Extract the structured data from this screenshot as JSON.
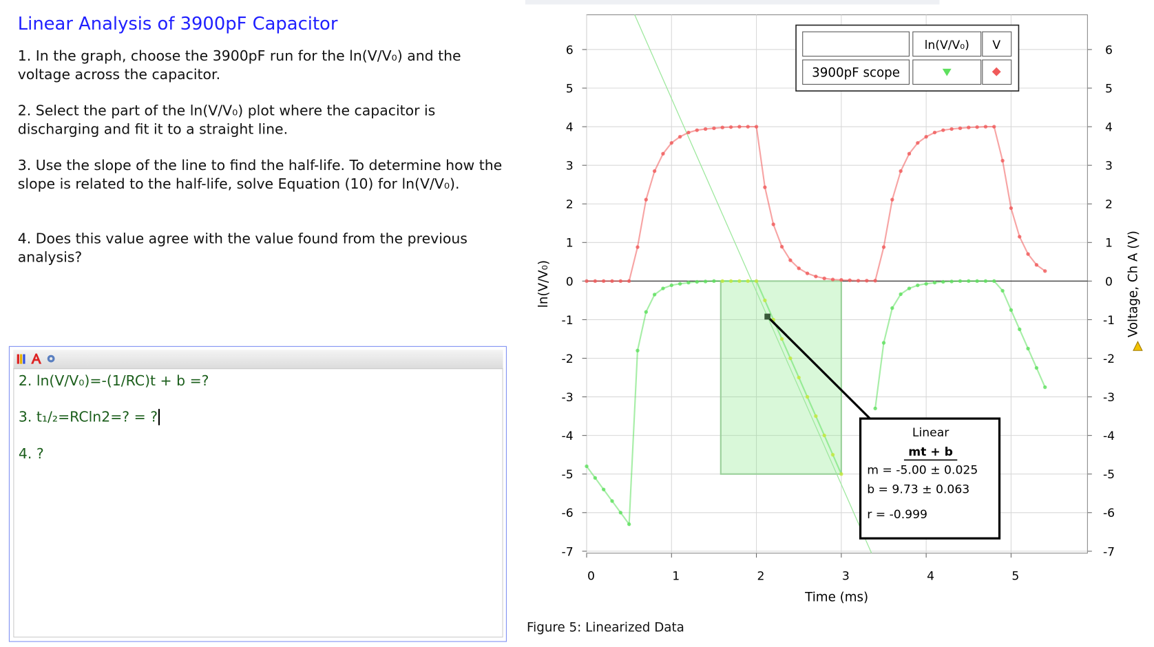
{
  "left_panel": {
    "title": "Linear Analysis of 3900pF Capacitor",
    "steps": [
      "1. In the graph, choose the 3900pF run for the ln(V/V₀) and the voltage across the capacitor.",
      "2. Select the part of the ln(V/V₀) plot where the capacitor is discharging and fit it to a straight line.",
      "3. Use the slope of the line to find the half-life. To determine how the slope is related to the half-life, solve Equation (10) for ln(V/V₀).",
      "4. Does this value agree with the value found from the previous analysis?"
    ]
  },
  "editor": {
    "lines": [
      "2. ln(V/V₀)=-(1/RC)t + b =?",
      "3. t₁/₂=RCln2=? = ?",
      "4. ?"
    ]
  },
  "caption": "Figure 5: Linearized Data",
  "chart_data": {
    "type": "scatter-line",
    "xlabel": "Time (ms)",
    "ylabel": "ln(V/V₀)",
    "y2label": "Voltage, Ch A (V)",
    "xlim": [
      0,
      5.9
    ],
    "ylim": [
      -7.05,
      6.9
    ],
    "y2lim": [
      -7.05,
      6.9
    ],
    "xticks": [
      0,
      1,
      2,
      3,
      4,
      5
    ],
    "yticks": [
      -7,
      -6,
      -5,
      -4,
      -3,
      -2,
      -1,
      0,
      1,
      2,
      3,
      4,
      5,
      6
    ],
    "y2ticks": [
      -7,
      -6,
      -5,
      -4,
      -3,
      -2,
      -1,
      0,
      1,
      2,
      3,
      4,
      5,
      6
    ],
    "grid": true,
    "legend": {
      "run": "3900pF scope",
      "position": "top-right"
    },
    "x": [
      0,
      0.1,
      0.2,
      0.3,
      0.4,
      0.5,
      0.6,
      0.7,
      0.8,
      0.9,
      1.0,
      1.1,
      1.2,
      1.3,
      1.4,
      1.5,
      1.6,
      1.7,
      1.8,
      1.9,
      2.0,
      2.1,
      2.2,
      2.3,
      2.4,
      2.5,
      2.6,
      2.7,
      2.8,
      2.9,
      3.0,
      3.1,
      3.2,
      3.3,
      3.4,
      3.5,
      3.6,
      3.7,
      3.8,
      3.9,
      4.0,
      4.1,
      4.2,
      4.3,
      4.4,
      4.5,
      4.6,
      4.7,
      4.8,
      4.9,
      5.0,
      5.1,
      5.2,
      5.3,
      5.4
    ],
    "series": [
      {
        "name": "ln(V/V₀)",
        "color": "#5ee05e",
        "values": [
          -4.8,
          -5.1,
          -5.4,
          -5.7,
          -6.0,
          -6.3,
          -1.8,
          -0.8,
          -0.35,
          -0.19,
          -0.11,
          -0.07,
          -0.04,
          -0.02,
          -0.01,
          0,
          0,
          0,
          0,
          0,
          0,
          -0.5,
          -1.0,
          -1.5,
          -2.0,
          -2.5,
          -3.0,
          -3.5,
          -4.0,
          -4.5,
          -5.0,
          null,
          null,
          null,
          -3.3,
          -1.6,
          -0.7,
          -0.34,
          -0.19,
          -0.11,
          -0.07,
          -0.04,
          -0.02,
          -0.01,
          0,
          0,
          0,
          0,
          0,
          -0.25,
          -0.75,
          -1.25,
          -1.75,
          -2.25,
          -2.75
        ]
      },
      {
        "name": "V",
        "color": "#f05a5a",
        "axis": "y2",
        "values": [
          0,
          0,
          0,
          0,
          0,
          0,
          0.88,
          2.11,
          2.85,
          3.3,
          3.58,
          3.74,
          3.85,
          3.91,
          3.94,
          3.96,
          3.98,
          3.99,
          4.0,
          4.0,
          4.0,
          2.43,
          1.47,
          0.89,
          0.54,
          0.33,
          0.2,
          0.12,
          0.07,
          0.04,
          0.03,
          0.02,
          0.01,
          0.01,
          0.01,
          0.88,
          2.11,
          2.85,
          3.3,
          3.58,
          3.74,
          3.85,
          3.91,
          3.94,
          3.96,
          3.98,
          3.99,
          4.0,
          4.0,
          3.12,
          1.89,
          1.15,
          0.7,
          0.42,
          0.26
        ]
      }
    ],
    "fit": {
      "label": "Linear",
      "formula": "mt + b",
      "m": {
        "value": -5.0,
        "label": "m = -5.00 ± 0.025"
      },
      "b": {
        "value": 9.73,
        "label": "b = 9.73  ± 0.063"
      },
      "r": "r = -0.999",
      "range": [
        1.58,
        3.0
      ]
    }
  }
}
